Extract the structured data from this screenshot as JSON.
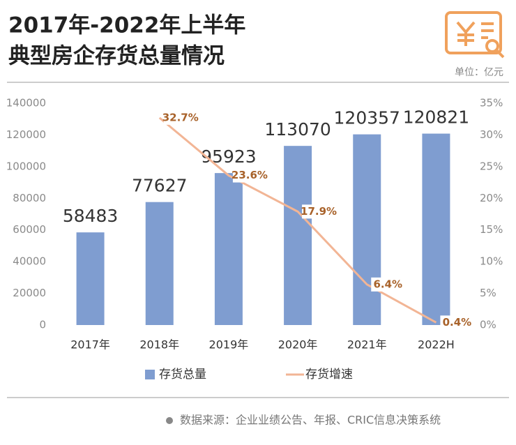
{
  "chart_data": {
    "type": "bar",
    "title": [
      "2017年-2022年上半年",
      "典型房企存货总量情况"
    ],
    "unit": "单位：亿元",
    "source": "数据来源：企业业绩公告、年报、CRIC信息决策系统",
    "categories": [
      "2017年",
      "2018年",
      "2019年",
      "2020年",
      "2021年",
      "2022H"
    ],
    "series": [
      {
        "name": "存货总量",
        "type": "bar",
        "color": "#7f9dd0",
        "values": [
          58483,
          77627,
          95923,
          113070,
          120357,
          120821
        ]
      },
      {
        "name": "存货增速",
        "type": "line",
        "axis": "y2",
        "color": "#f2b595",
        "values": [
          null,
          32.7,
          23.6,
          17.9,
          6.4,
          0.4
        ],
        "value_labels": [
          null,
          "32.7%",
          "23.6%",
          "17.9%",
          "6.4%",
          "0.4%"
        ]
      }
    ],
    "ylim": [
      0,
      140000
    ],
    "yticks": [
      0,
      20000,
      40000,
      60000,
      80000,
      100000,
      120000,
      140000
    ],
    "y2lim": [
      0,
      35
    ],
    "y2ticks": [
      {
        "value": 0,
        "label": "0%"
      },
      {
        "value": 5,
        "label": "5%"
      },
      {
        "value": 10,
        "label": "10%"
      },
      {
        "value": 15,
        "label": "15%"
      },
      {
        "value": 20,
        "label": "20%"
      },
      {
        "value": 25,
        "label": "25%"
      },
      {
        "value": 30,
        "label": "30%"
      },
      {
        "value": 35,
        "label": "35%"
      }
    ],
    "grid": false
  }
}
